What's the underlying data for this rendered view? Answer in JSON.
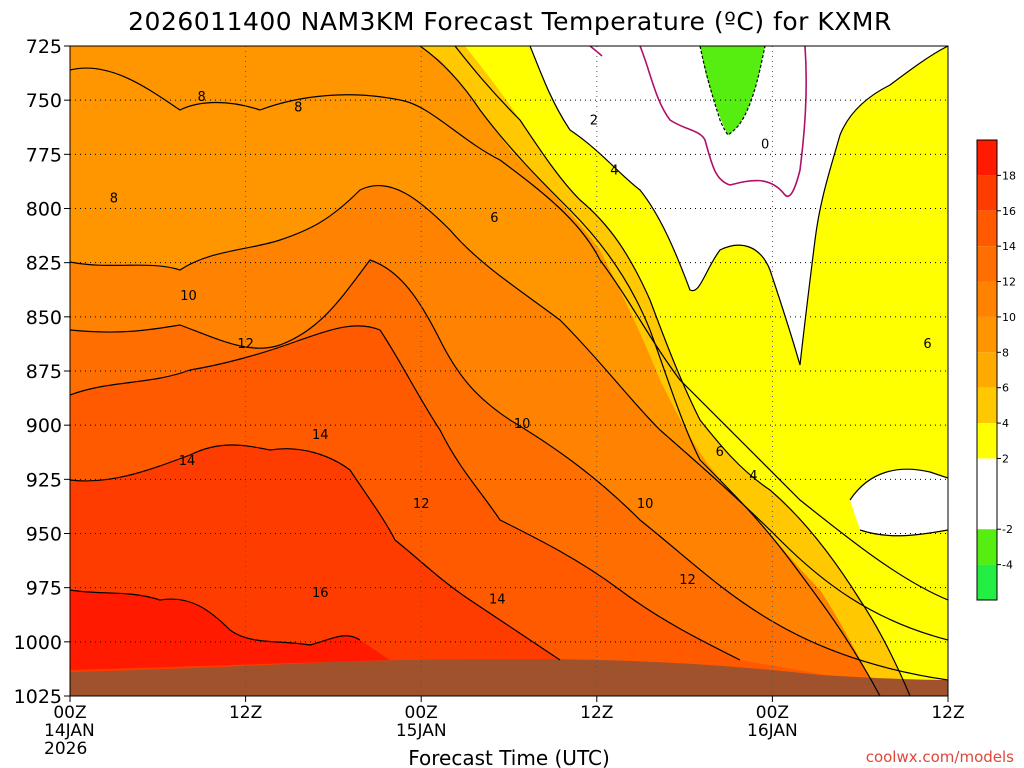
{
  "chart_data": {
    "type": "area",
    "title": "2026011400 NAM3KM Forecast Temperature (ºC) for KXMR",
    "xlabel": "Forecast Time (UTC)",
    "ylabel": "",
    "y_ticks": [
      "725",
      "750",
      "775",
      "800",
      "825",
      "850",
      "875",
      "900",
      "925",
      "950",
      "975",
      "1000",
      "1025"
    ],
    "y_range_hPa": [
      1025,
      725
    ],
    "x_ticks": [
      {
        "h": 0,
        "lines": [
          "00Z",
          "14JAN",
          "2026"
        ]
      },
      {
        "h": 12,
        "lines": [
          "12Z"
        ]
      },
      {
        "h": 24,
        "lines": [
          "00Z",
          "15JAN"
        ]
      },
      {
        "h": 36,
        "lines": [
          "12Z"
        ]
      },
      {
        "h": 48,
        "lines": [
          "00Z",
          "16JAN"
        ]
      },
      {
        "h": 60,
        "lines": [
          "12Z"
        ]
      }
    ],
    "x_range_hours": [
      0,
      60
    ],
    "grid": true,
    "legend": "colorbar-right",
    "colorbar": {
      "labels": [
        "18",
        "16",
        "14",
        "12",
        "10",
        "8",
        "6",
        "4",
        "2",
        "-2",
        "-4"
      ],
      "bins": [
        {
          "min": 18,
          "max": 20,
          "color": "#ff1a00"
        },
        {
          "min": 16,
          "max": 18,
          "color": "#ff3c00"
        },
        {
          "min": 14,
          "max": 16,
          "color": "#ff5a00"
        },
        {
          "min": 12,
          "max": 14,
          "color": "#ff6e00"
        },
        {
          "min": 10,
          "max": 12,
          "color": "#ff8200"
        },
        {
          "min": 8,
          "max": 10,
          "color": "#ff9600"
        },
        {
          "min": 6,
          "max": 8,
          "color": "#ffaa00"
        },
        {
          "min": 4,
          "max": 6,
          "color": "#ffc800"
        },
        {
          "min": 2,
          "max": 4,
          "color": "#ffff00"
        },
        {
          "min": 0,
          "max": 2,
          "color": "#ffffff"
        },
        {
          "min": -2,
          "max": 0,
          "color": "#ffffff"
        },
        {
          "min": -4,
          "max": -2,
          "color": "#55ee10"
        },
        {
          "min": -6,
          "max": -4,
          "color": "#22ee44"
        }
      ]
    },
    "contour_labels": [
      {
        "text": "8",
        "h": 9.0,
        "p": 748
      },
      {
        "text": "8",
        "h": 15.6,
        "p": 753
      },
      {
        "text": "8",
        "h": 3.0,
        "p": 795
      },
      {
        "text": "10",
        "h": 8.1,
        "p": 840
      },
      {
        "text": "12",
        "h": 12.0,
        "p": 862
      },
      {
        "text": "14",
        "h": 8.0,
        "p": 916
      },
      {
        "text": "14",
        "h": 17.1,
        "p": 904
      },
      {
        "text": "16",
        "h": 17.1,
        "p": 977
      },
      {
        "text": "12",
        "h": 24.0,
        "p": 936
      },
      {
        "text": "10",
        "h": 30.9,
        "p": 899
      },
      {
        "text": "6",
        "h": 29.0,
        "p": 804
      },
      {
        "text": "2",
        "h": 35.8,
        "p": 759
      },
      {
        "text": "4",
        "h": 37.2,
        "p": 782
      },
      {
        "text": "0",
        "h": 47.5,
        "p": 770
      },
      {
        "text": "6",
        "h": 44.4,
        "p": 912
      },
      {
        "text": "4",
        "h": 46.7,
        "p": 923
      },
      {
        "text": "10",
        "h": 39.3,
        "p": 936
      },
      {
        "text": "12",
        "h": 42.2,
        "p": 971
      },
      {
        "text": "14",
        "h": 29.2,
        "p": 980
      },
      {
        "text": "6",
        "h": 58.6,
        "p": 862
      }
    ]
  },
  "credit": "coolwx.com/models"
}
